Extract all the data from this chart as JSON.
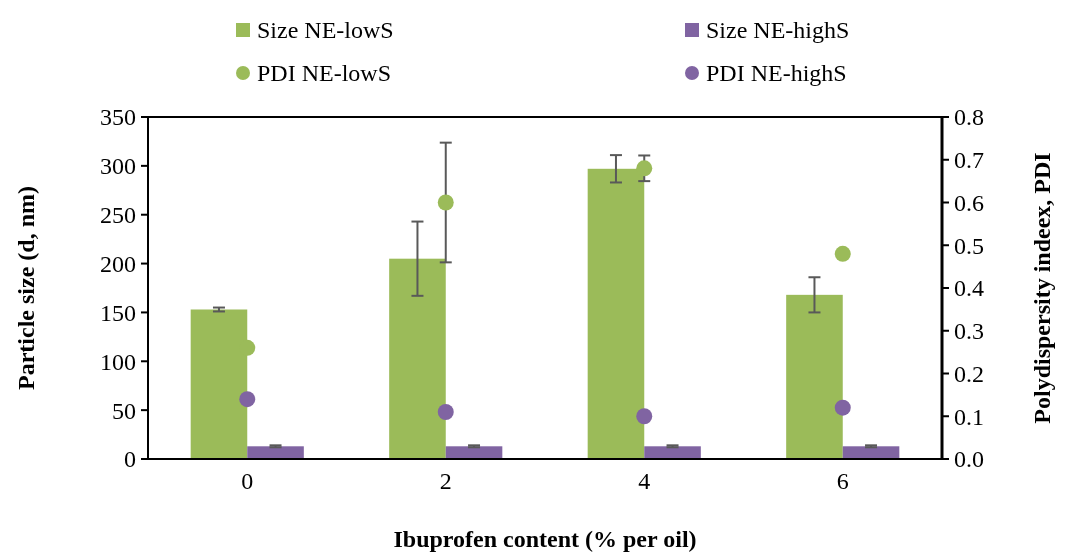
{
  "chart_data": {
    "type": "bar",
    "xlabel": "Ibuprofen content (% per oil)",
    "ylabel": "Particle size (d, nm)",
    "y2label": "Polydispersity indeex, PDI",
    "categories": [
      "0",
      "2",
      "4",
      "6"
    ],
    "series": [
      {
        "name": "Size NE-lowS",
        "color": "#9bbb59",
        "values": [
          153,
          205,
          297,
          168
        ],
        "errors": [
          2,
          38,
          14,
          18
        ]
      },
      {
        "name": "Size NE-highS",
        "color": "#8064a2",
        "values": [
          13,
          13,
          13,
          13
        ],
        "errors": [
          1,
          1,
          1,
          1
        ]
      },
      {
        "name": "PDI NE-lowS",
        "type": "scatter",
        "axis": "y2",
        "color": "#9bbb59",
        "x": [
          "0",
          "2",
          "4",
          "6"
        ],
        "values": [
          0.26,
          0.6,
          0.68,
          0.48
        ],
        "errors": [
          null,
          0.14,
          0.03,
          null
        ]
      },
      {
        "name": "PDI NE-highS",
        "type": "scatter",
        "axis": "y2",
        "color": "#8064a2",
        "x": [
          "0",
          "2",
          "4",
          "6"
        ],
        "values": [
          0.14,
          0.11,
          0.1,
          0.12
        ],
        "errors": [
          null,
          null,
          null,
          null
        ]
      }
    ],
    "ylim": [
      0,
      350
    ],
    "yticks": [
      0,
      50,
      100,
      150,
      200,
      250,
      300,
      350
    ],
    "y2lim": [
      0,
      0.8
    ],
    "y2ticks": [
      {
        "value": 0,
        "label": "0.0"
      },
      0.1,
      0.2,
      0.3,
      0.4,
      0.5,
      0.6,
      0.7,
      0.8
    ],
    "legend": "top",
    "marker": "circle",
    "grid": false
  }
}
